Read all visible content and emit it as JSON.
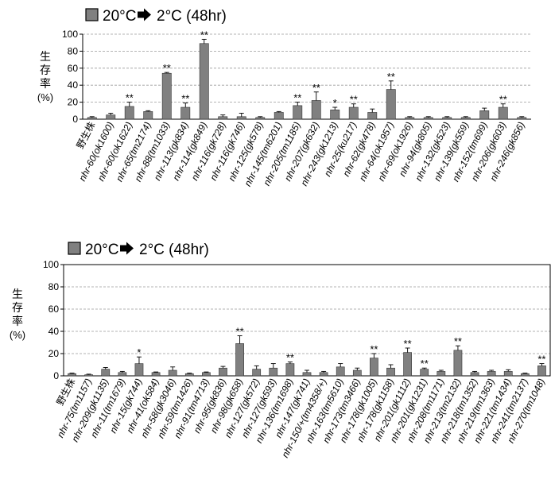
{
  "chart_data": [
    {
      "type": "bar",
      "legend": {
        "label": "20°C",
        "arrow": "arrow-right-icon",
        "target": "2°C (48hr)"
      },
      "ylabel": [
        "生",
        "存",
        "率",
        "(%)"
      ],
      "ylim": [
        0,
        100
      ],
      "yticks": [
        0,
        20,
        40,
        60,
        80,
        100
      ],
      "grid": true,
      "bar_color": "#808080",
      "categories": [
        "野生株",
        "nhr-60(ok1600)",
        "nhr-60(ok1622)",
        "nhr-65(tm2174)",
        "nhr-88(tm1033)",
        "nhr-113(gk834)",
        "nhr-114(gk849)",
        "nhr-116(gk728)",
        "nhr-116(gk746)",
        "nhr-125(gk578)",
        "nhr-145(tm6201)",
        "nhr-205(tm1185)",
        "nhr-207(gk632)",
        "nhr-243(gk1213)",
        "nhr-25(ku217)",
        "nhr-62(gk478)",
        "nhr-64(ok1957)",
        "nhr-69(ok1926)",
        "nhr-94(gk805)",
        "nhr-132(gk523)",
        "nhr-139(gk559)",
        "nhr-152(tm699)",
        "nhr-206(gk603)",
        "nhr-246(gk856)"
      ],
      "values": [
        2,
        5,
        15,
        9,
        54,
        14,
        89,
        3,
        3,
        2,
        8,
        16,
        22,
        11,
        14,
        8,
        35,
        2,
        2,
        2,
        2,
        10,
        14,
        2
      ],
      "errors": [
        1,
        2,
        5,
        1,
        1,
        5,
        5,
        2,
        4,
        1,
        1,
        4,
        10,
        3,
        4,
        4,
        10,
        1,
        1,
        1,
        1,
        3,
        4,
        1
      ],
      "significance": [
        "",
        "",
        "**",
        "",
        "**",
        "**",
        "**",
        "",
        "",
        "",
        "",
        "**",
        "**",
        "*",
        "**",
        "",
        "**",
        "",
        "",
        "",
        "",
        "",
        "**",
        ""
      ]
    },
    {
      "type": "bar",
      "legend": {
        "label": "20°C",
        "arrow": "arrow-right-icon",
        "target": "2°C (48hr)"
      },
      "ylabel": [
        "生",
        "存",
        "率",
        "(%)"
      ],
      "ylim": [
        0,
        100
      ],
      "yticks": [
        0,
        20,
        40,
        60,
        80,
        100
      ],
      "grid": true,
      "bar_color": "#808080",
      "categories": [
        "野生株",
        "nhr-75(tm1157)",
        "nhr-209(gk1135)",
        "nhr-11(tm1679)",
        "nhr-15(gk744)",
        "nhr-41(ok584)",
        "nhr-58(gk3046)",
        "nhr-59(tm1426)",
        "nhr-91(tm4713)",
        "nhr-95(gk836)",
        "nhr-98(gk658)",
        "nhr-127(gk572)",
        "nhr-127(gk593)",
        "nhr-136(tm1698)",
        "nhr-147(gk741)",
        "nhr-150/+(tm4358/+)",
        "nhr-163(tm5610)",
        "nhr-173(tm3466)",
        "nhr-178(gk1005)",
        "nhr-178(gk1158)",
        "nhr-201(gk1112)",
        "nhr-201(gk1231)",
        "nhr-208(tm1171)",
        "nhr-213(tm2132)",
        "nhr-218(tm1352)",
        "nhr-219(tm1363)",
        "nhr-221(tm1434)",
        "nhr-241(tm2137)",
        "nhr-270(tm1048)"
      ],
      "values": [
        2,
        1,
        6,
        3,
        11,
        3,
        5,
        2,
        3,
        7,
        29,
        6,
        7,
        11,
        3,
        3,
        8,
        5,
        16,
        7,
        21,
        6,
        4,
        23,
        3,
        4,
        4,
        2,
        9
      ],
      "errors": [
        0.5,
        0.5,
        1.5,
        1,
        6,
        0.5,
        3,
        0.5,
        0.5,
        1.5,
        7,
        3,
        4,
        1.5,
        2,
        1,
        3,
        2,
        4,
        3,
        4,
        1,
        1,
        4,
        1,
        1,
        1.5,
        0.5,
        2
      ],
      "significance": [
        "",
        "",
        "",
        "",
        "*",
        "",
        "",
        "",
        "",
        "",
        "**",
        "",
        "",
        "**",
        "",
        "",
        "",
        "",
        "**",
        "",
        "**",
        "**",
        "",
        "**",
        "",
        "",
        "",
        "",
        "**"
      ]
    }
  ]
}
